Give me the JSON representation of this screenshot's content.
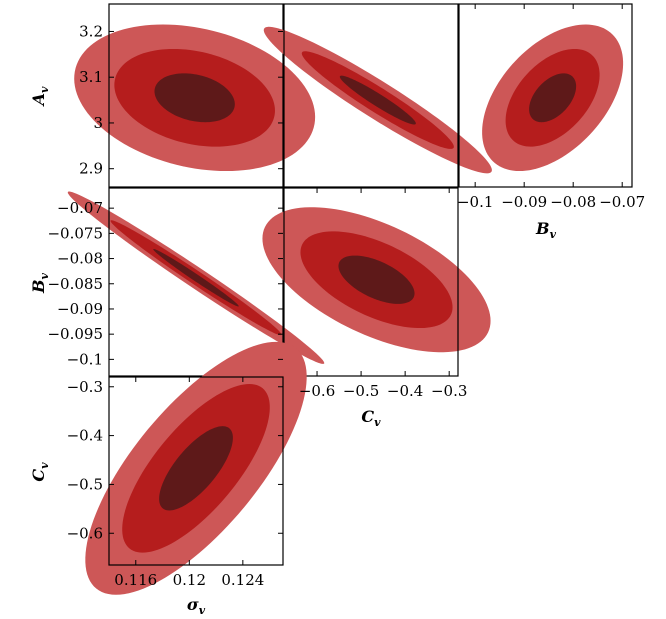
{
  "chart_data": {
    "type": "contour",
    "colors": {
      "outer": "#cd5757",
      "middle": "#b51d1d",
      "inner": "#5e1919"
    },
    "panels": [
      {
        "id": "sigma-A",
        "x_param": "sigma",
        "y_param": "A",
        "xlim": [
          0.114,
          0.127
        ],
        "ylim": [
          2.86,
          3.26
        ],
        "center": [
          0.1204,
          3.055
        ],
        "var_x": 9e-06,
        "var_y": 0.00285,
        "cov": -4.2e-05
      },
      {
        "id": "C-A",
        "x_param": "C",
        "y_param": "A",
        "xlim": [
          -0.675,
          -0.28
        ],
        "ylim": [
          2.86,
          3.26
        ],
        "center": [
          -0.462,
          3.05
        ],
        "var_x": 0.00745,
        "var_y": 0.00285,
        "cov": -0.0044
      },
      {
        "id": "B-A",
        "x_param": "B",
        "y_param": "A",
        "xlim": [
          -0.1033,
          -0.068
        ],
        "ylim": [
          2.86,
          3.26
        ],
        "center": [
          -0.0842,
          3.055
        ],
        "var_x": 2.3e-05,
        "var_y": 0.00285,
        "cov": 0.00012
      },
      {
        "id": "sigma-B",
        "x_param": "sigma",
        "y_param": "B",
        "xlim": [
          0.114,
          0.127
        ],
        "ylim": [
          -0.1033,
          -0.066
        ],
        "center": [
          0.1205,
          -0.0838
        ],
        "var_x": 1.02e-05,
        "var_y": 3.25e-05,
        "cov": -1.802e-05
      },
      {
        "id": "C-B",
        "x_param": "C",
        "y_param": "B",
        "xlim": [
          -0.675,
          -0.28
        ],
        "ylim": [
          -0.1033,
          -0.066
        ],
        "center": [
          -0.465,
          -0.0842
        ],
        "var_x": 0.00745,
        "var_y": 2.3e-05,
        "cov": -0.000235
      },
      {
        "id": "sigma-C",
        "x_param": "sigma",
        "y_param": "C",
        "xlim": [
          0.114,
          0.127
        ],
        "ylim": [
          -0.665,
          -0.28
        ],
        "center": [
          0.1205,
          -0.467
        ],
        "var_x": 7.6e-06,
        "var_y": 0.00745,
        "cov": 0.000172
      }
    ],
    "levels": [
      1,
      2,
      3
    ],
    "axes": {
      "A": {
        "label": "A",
        "sub": "v",
        "ticks": [
          2.9,
          3.0,
          3.1,
          3.2
        ],
        "tick_labels": [
          "2.9",
          "3",
          "3.1",
          "3.2"
        ]
      },
      "B_left": {
        "label": "B",
        "sub": "v",
        "ticks": [
          -0.1,
          -0.095,
          -0.09,
          -0.085,
          -0.08,
          -0.075,
          -0.07
        ],
        "tick_labels": [
          "−0.1",
          "−0.095",
          "−0.09",
          "−0.085",
          "−0.08",
          "−0.075",
          "−0.07"
        ]
      },
      "B_bottom": {
        "label": "B",
        "sub": "v",
        "ticks": [
          -0.1,
          -0.09,
          -0.08,
          -0.07
        ],
        "tick_labels": [
          "−0.1",
          "−0.09",
          "−0.08",
          "−0.07"
        ]
      },
      "C_left": {
        "label": "C",
        "sub": "v",
        "ticks": [
          -0.6,
          -0.5,
          -0.4,
          -0.3
        ],
        "tick_labels": [
          "−0.6",
          "−0.5",
          "−0.4",
          "−0.3"
        ]
      },
      "C_bottom": {
        "label": "C",
        "sub": "v",
        "ticks": [
          -0.6,
          -0.5,
          -0.4,
          -0.3
        ],
        "tick_labels": [
          "−0.6",
          "−0.5",
          "−0.4",
          "−0.3"
        ]
      },
      "sigma": {
        "label": "σ",
        "sub": "v",
        "ticks": [
          0.116,
          0.12,
          0.124
        ],
        "tick_labels": [
          "0.116",
          "0.12",
          "0.124"
        ]
      }
    }
  }
}
